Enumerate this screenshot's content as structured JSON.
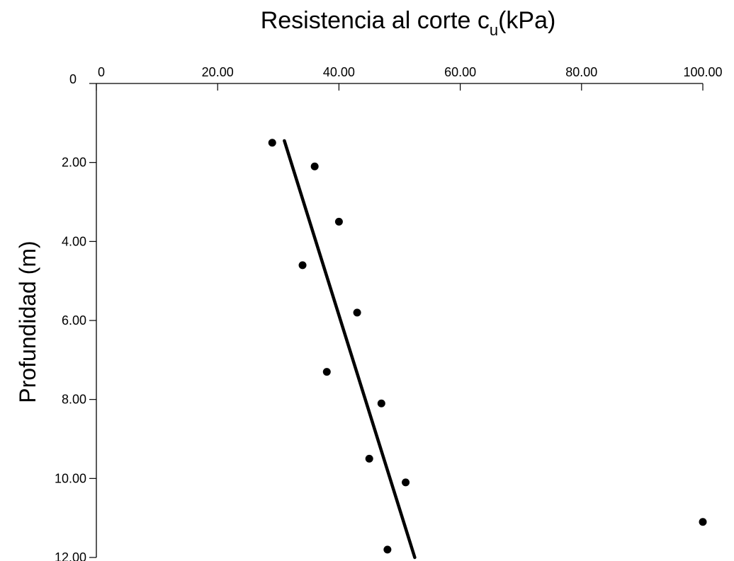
{
  "chart_data": {
    "type": "scatter",
    "title": {
      "prefix": "Resistencia al corte c",
      "sub": "u",
      "suffix": "(kPa)"
    },
    "ylabel": "Profundidad  (m)",
    "x_axis": {
      "position": "top",
      "range": [
        0,
        100
      ],
      "ticks": [
        {
          "value": 0,
          "label": "0"
        },
        {
          "value": 20,
          "label": "20.00"
        },
        {
          "value": 40,
          "label": "40.00"
        },
        {
          "value": 60,
          "label": "60.00"
        },
        {
          "value": 80,
          "label": "80.00"
        },
        {
          "value": 100,
          "label": "100.00"
        }
      ]
    },
    "y_axis": {
      "inverted": true,
      "range": [
        0,
        12
      ],
      "ticks": [
        {
          "value": 0,
          "label": "0"
        },
        {
          "value": 2,
          "label": "2.00"
        },
        {
          "value": 4,
          "label": "4.00"
        },
        {
          "value": 6,
          "label": "6.00"
        },
        {
          "value": 8,
          "label": "8.00"
        },
        {
          "value": 10,
          "label": "10.00"
        },
        {
          "value": 12,
          "label": "12.00"
        }
      ]
    },
    "grid": false,
    "series": [
      {
        "type": "scatter",
        "color": "#000000",
        "points": [
          {
            "x": 29,
            "y": 1.5
          },
          {
            "x": 36,
            "y": 2.1
          },
          {
            "x": 40,
            "y": 3.5
          },
          {
            "x": 34,
            "y": 4.6
          },
          {
            "x": 43,
            "y": 5.8
          },
          {
            "x": 38,
            "y": 7.3
          },
          {
            "x": 47,
            "y": 8.1
          },
          {
            "x": 45,
            "y": 9.5
          },
          {
            "x": 51,
            "y": 10.1
          },
          {
            "x": 100,
            "y": 11.1
          },
          {
            "x": 48,
            "y": 11.8
          }
        ]
      },
      {
        "type": "line",
        "color": "#000000",
        "points": [
          {
            "x": 31,
            "y": 1.45
          },
          {
            "x": 52.5,
            "y": 12.0
          }
        ]
      }
    ]
  }
}
